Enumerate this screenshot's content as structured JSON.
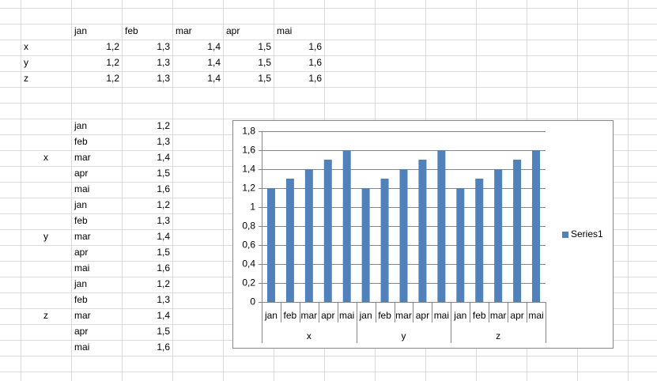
{
  "sheet": {
    "table1": {
      "header": [
        "jan",
        "feb",
        "mar",
        "apr",
        "mai"
      ],
      "rows": [
        [
          "x",
          "1,2",
          "1,3",
          "1,4",
          "1,5",
          "1,6"
        ],
        [
          "y",
          "1,2",
          "1,3",
          "1,4",
          "1,5",
          "1,6"
        ],
        [
          "z",
          "1,2",
          "1,3",
          "1,4",
          "1,5",
          "1,6"
        ]
      ]
    },
    "table2": {
      "groups": [
        {
          "label": "x",
          "rows": [
            [
              "jan",
              "1,2"
            ],
            [
              "feb",
              "1,3"
            ],
            [
              "mar",
              "1,4"
            ],
            [
              "apr",
              "1,5"
            ],
            [
              "mai",
              "1,6"
            ]
          ]
        },
        {
          "label": "y",
          "rows": [
            [
              "jan",
              "1,2"
            ],
            [
              "feb",
              "1,3"
            ],
            [
              "mar",
              "1,4"
            ],
            [
              "apr",
              "1,5"
            ],
            [
              "mai",
              "1,6"
            ]
          ]
        },
        {
          "label": "z",
          "rows": [
            [
              "jan",
              "1,2"
            ],
            [
              "feb",
              "1,3"
            ],
            [
              "mar",
              "1,4"
            ],
            [
              "apr",
              "1,5"
            ],
            [
              "mai",
              "1,6"
            ]
          ]
        }
      ]
    }
  },
  "chart_data": {
    "type": "bar",
    "categories": [
      "jan",
      "feb",
      "mar",
      "apr",
      "mai",
      "jan",
      "feb",
      "mar",
      "apr",
      "mai",
      "jan",
      "feb",
      "mar",
      "apr",
      "mai"
    ],
    "groups": [
      "x",
      "y",
      "z"
    ],
    "series": [
      {
        "name": "Series1",
        "color": "#4f81bd",
        "values": [
          1.2,
          1.3,
          1.4,
          1.5,
          1.6,
          1.2,
          1.3,
          1.4,
          1.5,
          1.6,
          1.2,
          1.3,
          1.4,
          1.5,
          1.6
        ]
      }
    ],
    "ylim": [
      0,
      1.8
    ],
    "yticks": [
      0,
      {
        "value": 0.2,
        "label": "0,2"
      },
      {
        "value": 0.4,
        "label": "0,4"
      },
      {
        "value": 0.6,
        "label": "0,6"
      },
      {
        "value": 0.8,
        "label": "0,8"
      },
      1,
      {
        "value": 1.2,
        "label": "1,2"
      },
      {
        "value": 1.4,
        "label": "1,4"
      },
      {
        "value": 1.6,
        "label": "1,6"
      },
      {
        "value": 1.8,
        "label": "1,8"
      }
    ],
    "grid": true,
    "legend": "right"
  }
}
